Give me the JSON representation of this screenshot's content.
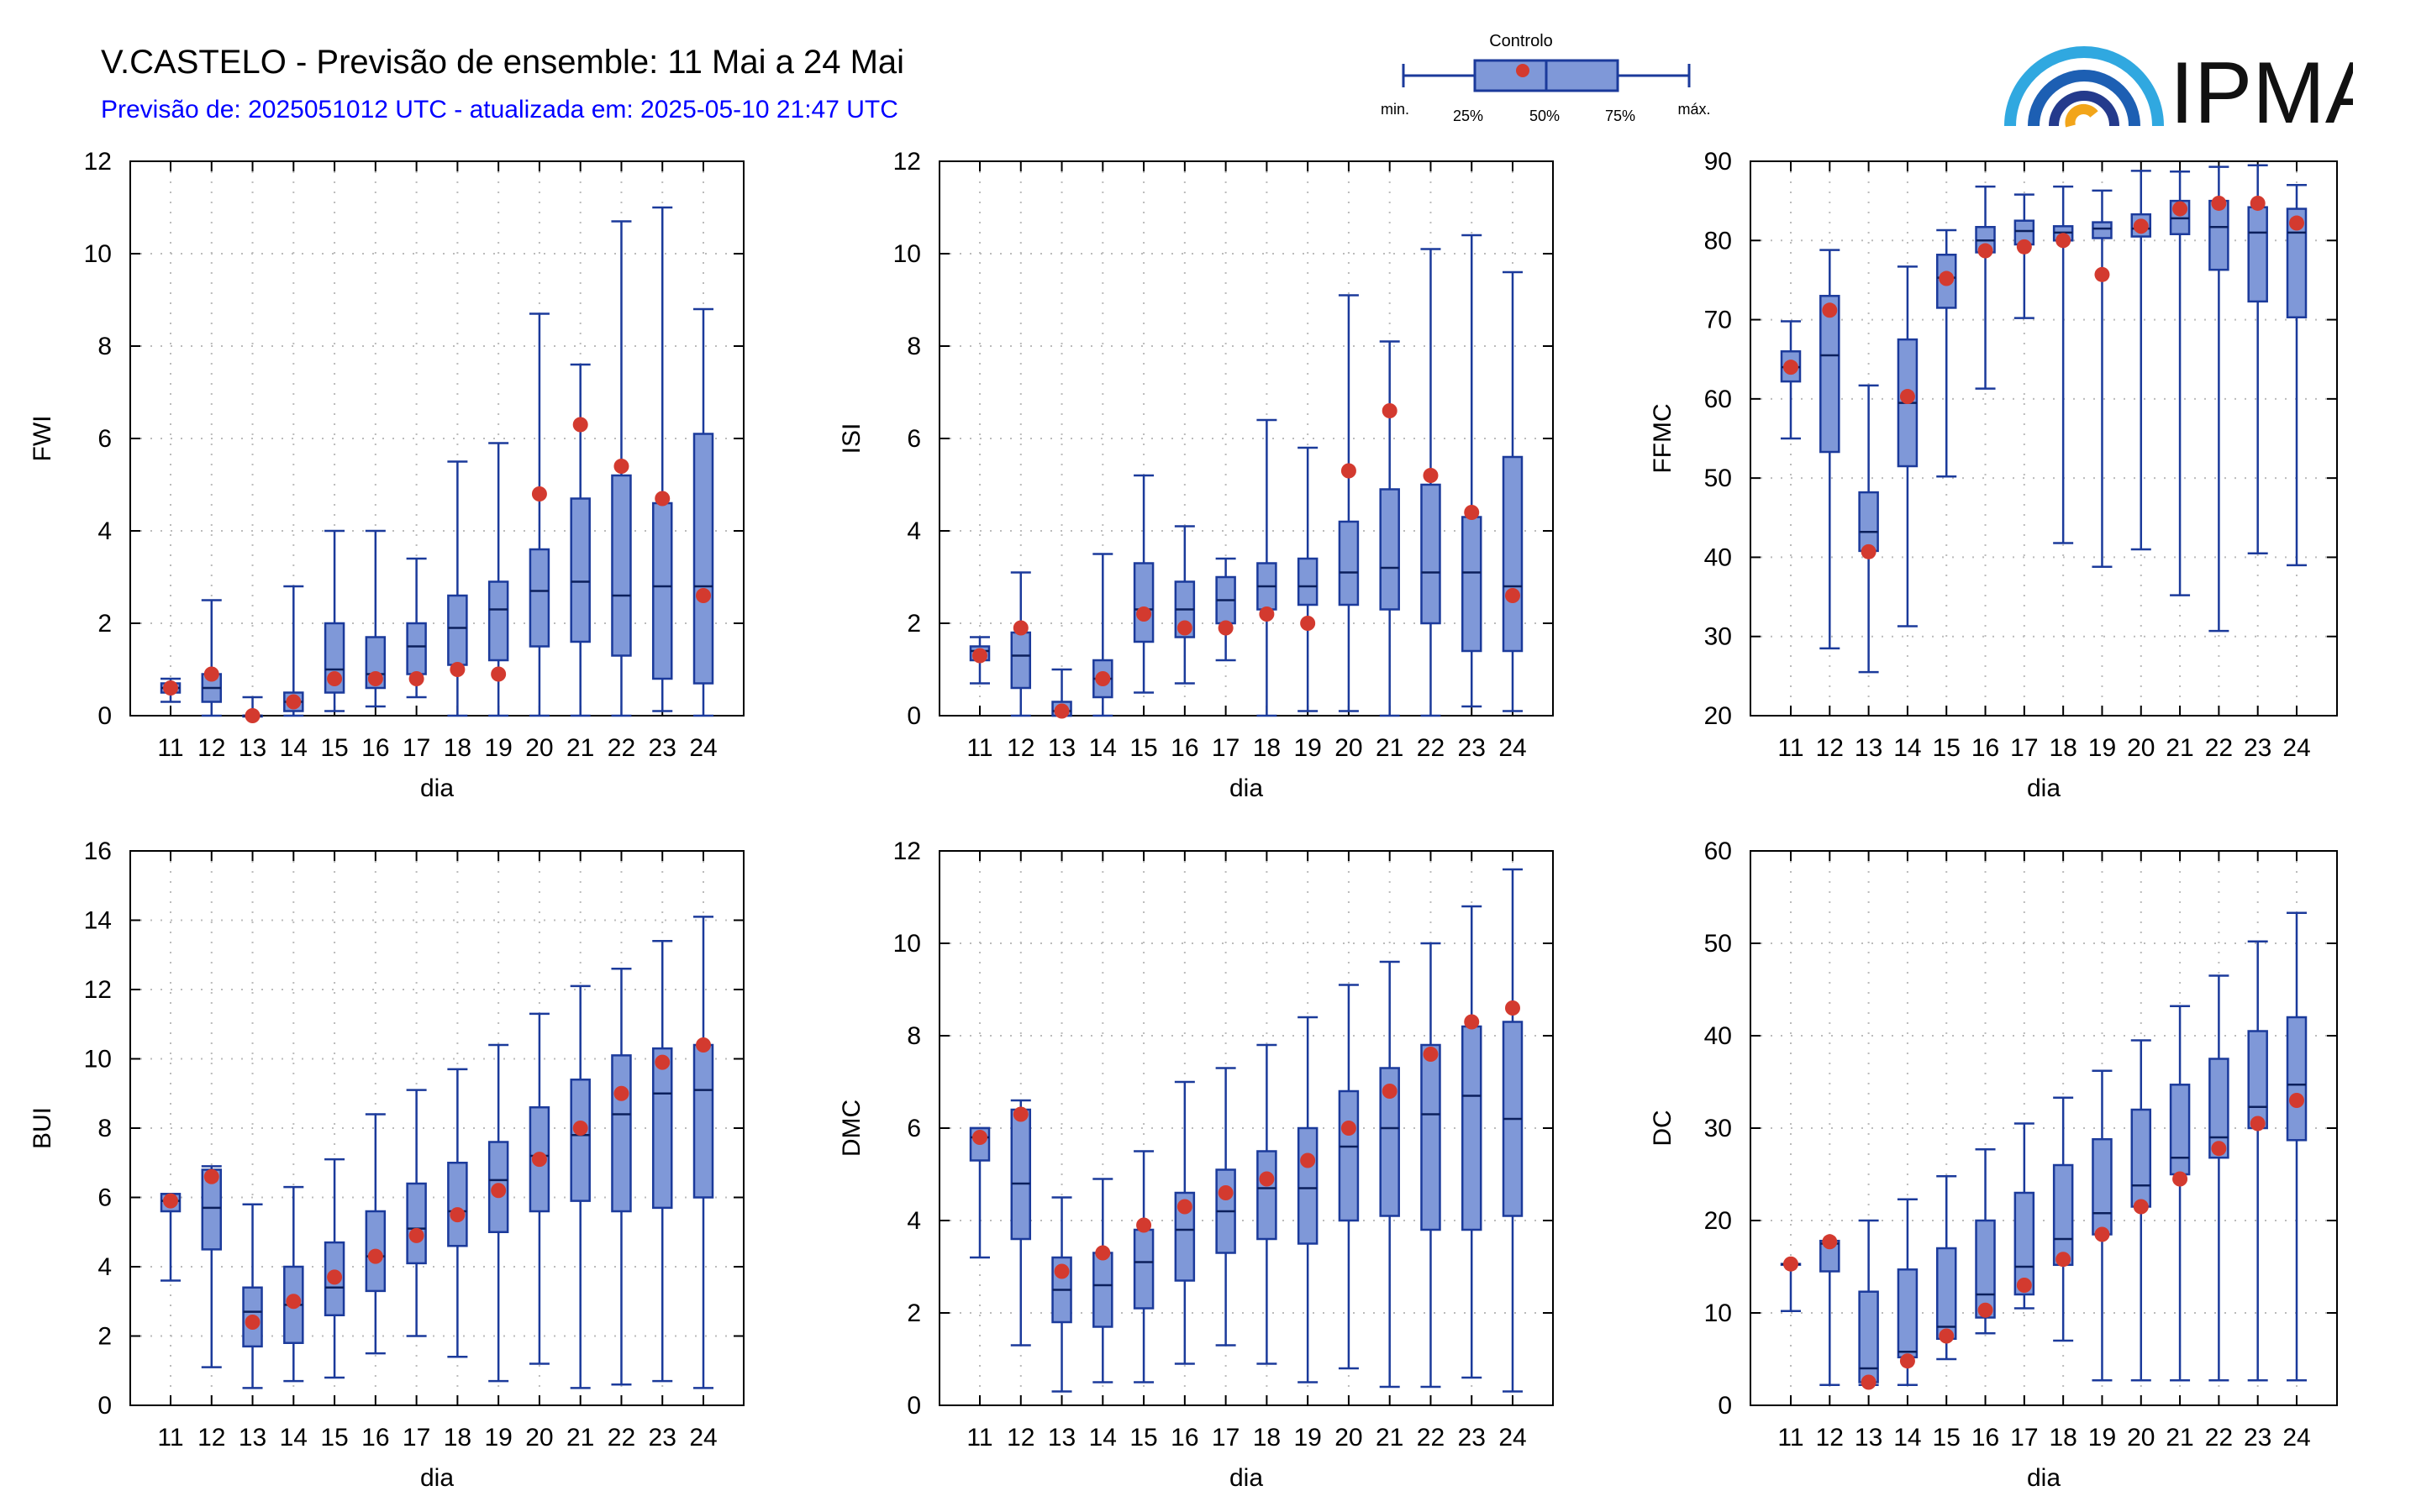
{
  "header": {
    "title": "V.CASTELO - Previsão de ensemble: 11 Mai a 24 Mai",
    "subtitle": "Previsão de: 2025051012 UTC - atualizada em: 2025-05-10 21:47 UTC"
  },
  "legend": {
    "title": "Controlo",
    "labels": [
      "min.",
      "25%",
      "50%",
      "75%",
      "máx."
    ]
  },
  "logo": {
    "text": "IPMA"
  },
  "colors": {
    "box": "#7f98d8",
    "line": "#1b3a9b",
    "control": "#d33a2f",
    "grid": "#bbbbbb"
  },
  "chart_data": [
    {
      "type": "boxplot",
      "ylabel": "FWI",
      "xlabel": "dia",
      "categories": [
        "11",
        "12",
        "13",
        "14",
        "15",
        "16",
        "17",
        "18",
        "19",
        "20",
        "21",
        "22",
        "23",
        "24"
      ],
      "ylim": [
        0,
        12
      ],
      "yticks": [
        0,
        2,
        4,
        6,
        8,
        10,
        12
      ],
      "min": [
        0.3,
        0.0,
        0.0,
        0.0,
        0.1,
        0.2,
        0.4,
        0.0,
        0.0,
        0.0,
        0.0,
        0.0,
        0.1,
        0.0
      ],
      "q1": [
        0.5,
        0.3,
        0.0,
        0.1,
        0.5,
        0.6,
        0.9,
        1.1,
        1.2,
        1.5,
        1.6,
        1.3,
        0.8,
        0.7
      ],
      "median": [
        0.6,
        0.6,
        0.0,
        0.3,
        1.0,
        0.9,
        1.5,
        1.9,
        2.3,
        2.7,
        2.9,
        2.6,
        2.8,
        2.8
      ],
      "q3": [
        0.7,
        0.9,
        0.0,
        0.5,
        2.0,
        1.7,
        2.0,
        2.6,
        2.9,
        3.6,
        4.7,
        5.2,
        4.6,
        6.1
      ],
      "max": [
        0.8,
        2.5,
        0.4,
        2.8,
        4.0,
        4.0,
        3.4,
        5.5,
        5.9,
        8.7,
        7.6,
        10.7,
        11.0,
        8.8
      ],
      "control": [
        0.6,
        0.9,
        0.0,
        0.3,
        0.8,
        0.8,
        0.8,
        1.0,
        0.9,
        4.8,
        6.3,
        5.4,
        4.7,
        2.6
      ]
    },
    {
      "type": "boxplot",
      "ylabel": "ISI",
      "xlabel": "dia",
      "categories": [
        "11",
        "12",
        "13",
        "14",
        "15",
        "16",
        "17",
        "18",
        "19",
        "20",
        "21",
        "22",
        "23",
        "24"
      ],
      "ylim": [
        0,
        12
      ],
      "yticks": [
        0,
        2,
        4,
        6,
        8,
        10,
        12
      ],
      "min": [
        0.7,
        0.0,
        0.0,
        0.0,
        0.5,
        0.7,
        1.2,
        0.0,
        0.1,
        0.1,
        0.0,
        0.0,
        0.2,
        0.1
      ],
      "q1": [
        1.2,
        0.6,
        0.0,
        0.4,
        1.6,
        1.7,
        2.0,
        2.3,
        2.4,
        2.4,
        2.3,
        2.0,
        1.4,
        1.4
      ],
      "median": [
        1.4,
        1.3,
        0.1,
        0.8,
        2.3,
        2.3,
        2.5,
        2.8,
        2.8,
        3.1,
        3.2,
        3.1,
        3.1,
        2.8
      ],
      "q3": [
        1.5,
        1.8,
        0.3,
        1.2,
        3.3,
        2.9,
        3.0,
        3.3,
        3.4,
        4.2,
        4.9,
        5.0,
        4.3,
        5.6
      ],
      "max": [
        1.7,
        3.1,
        1.0,
        3.5,
        5.2,
        4.1,
        3.4,
        6.4,
        5.8,
        9.1,
        8.1,
        10.1,
        10.4,
        9.6
      ],
      "control": [
        1.3,
        1.9,
        0.1,
        0.8,
        2.2,
        1.9,
        1.9,
        2.2,
        2.0,
        5.3,
        6.6,
        5.2,
        4.4,
        2.6
      ]
    },
    {
      "type": "boxplot",
      "ylabel": "FFMC",
      "xlabel": "dia",
      "categories": [
        "11",
        "12",
        "13",
        "14",
        "15",
        "16",
        "17",
        "18",
        "19",
        "20",
        "21",
        "22",
        "23",
        "24"
      ],
      "ylim": [
        20,
        90
      ],
      "yticks": [
        20,
        30,
        40,
        50,
        60,
        70,
        80,
        90
      ],
      "min": [
        55.0,
        28.5,
        25.5,
        31.3,
        50.2,
        61.3,
        70.2,
        41.8,
        38.8,
        41.0,
        35.2,
        30.7,
        40.5,
        39.0
      ],
      "q1": [
        62.2,
        53.3,
        40.8,
        51.5,
        71.5,
        78.5,
        79.5,
        80.0,
        80.3,
        80.5,
        80.8,
        76.3,
        72.3,
        70.3
      ],
      "median": [
        64.0,
        65.5,
        43.2,
        59.5,
        75.3,
        80.0,
        81.2,
        81.0,
        81.5,
        81.5,
        82.8,
        81.7,
        81.0,
        81.0
      ],
      "q3": [
        66.0,
        73.0,
        48.2,
        67.5,
        78.2,
        81.7,
        82.5,
        81.8,
        82.3,
        83.3,
        85.0,
        85.0,
        84.2,
        84.0
      ],
      "max": [
        69.8,
        78.8,
        61.7,
        76.7,
        81.3,
        86.8,
        85.8,
        86.8,
        86.3,
        88.8,
        88.7,
        89.3,
        89.5,
        87.0
      ],
      "control": [
        64.0,
        71.2,
        40.7,
        60.3,
        75.2,
        78.7,
        79.2,
        80.0,
        75.7,
        81.8,
        84.0,
        84.7,
        84.7,
        82.2
      ]
    },
    {
      "type": "boxplot",
      "ylabel": "BUI",
      "xlabel": "dia",
      "categories": [
        "11",
        "12",
        "13",
        "14",
        "15",
        "16",
        "17",
        "18",
        "19",
        "20",
        "21",
        "22",
        "23",
        "24"
      ],
      "ylim": [
        0,
        16
      ],
      "yticks": [
        0,
        2,
        4,
        6,
        8,
        10,
        12,
        14,
        16
      ],
      "min": [
        3.6,
        1.1,
        0.5,
        0.7,
        0.8,
        1.5,
        2.0,
        1.4,
        0.7,
        1.2,
        0.5,
        0.6,
        0.7,
        0.5
      ],
      "q1": [
        5.6,
        4.5,
        1.7,
        1.8,
        2.6,
        3.3,
        4.1,
        4.6,
        5.0,
        5.6,
        5.9,
        5.6,
        5.7,
        6.0
      ],
      "median": [
        5.9,
        5.7,
        2.7,
        2.9,
        3.4,
        4.3,
        5.1,
        5.6,
        6.5,
        7.2,
        7.8,
        8.4,
        9.0,
        9.1
      ],
      "q3": [
        6.1,
        6.8,
        3.4,
        4.0,
        4.7,
        5.6,
        6.4,
        7.0,
        7.6,
        8.6,
        9.4,
        10.1,
        10.3,
        10.4
      ],
      "max": [
        6.1,
        6.9,
        5.8,
        6.3,
        7.1,
        8.4,
        9.1,
        9.7,
        10.4,
        11.3,
        12.1,
        12.6,
        13.4,
        14.1
      ],
      "control": [
        5.9,
        6.6,
        2.4,
        3.0,
        3.7,
        4.3,
        4.9,
        5.5,
        6.2,
        7.1,
        8.0,
        9.0,
        9.9,
        10.4
      ]
    },
    {
      "type": "boxplot",
      "ylabel": "DMC",
      "xlabel": "dia",
      "categories": [
        "11",
        "12",
        "13",
        "14",
        "15",
        "16",
        "17",
        "18",
        "19",
        "20",
        "21",
        "22",
        "23",
        "24"
      ],
      "ylim": [
        0,
        12
      ],
      "yticks": [
        0,
        2,
        4,
        6,
        8,
        10,
        12
      ],
      "min": [
        3.2,
        1.3,
        0.3,
        0.5,
        0.5,
        0.9,
        1.3,
        0.9,
        0.5,
        0.8,
        0.4,
        0.4,
        0.6,
        0.3
      ],
      "q1": [
        5.3,
        3.6,
        1.8,
        1.7,
        2.1,
        2.7,
        3.3,
        3.6,
        3.5,
        4.0,
        4.1,
        3.8,
        3.8,
        4.1
      ],
      "median": [
        5.8,
        4.8,
        2.5,
        2.6,
        3.1,
        3.8,
        4.2,
        4.7,
        4.7,
        5.6,
        6.0,
        6.3,
        6.7,
        6.2
      ],
      "q3": [
        6.0,
        6.4,
        3.2,
        3.3,
        3.8,
        4.6,
        5.1,
        5.5,
        6.0,
        6.8,
        7.3,
        7.8,
        8.2,
        8.3
      ],
      "max": [
        6.0,
        6.6,
        4.5,
        4.9,
        5.5,
        7.0,
        7.3,
        7.8,
        8.4,
        9.1,
        9.6,
        10.0,
        10.8,
        11.6
      ],
      "control": [
        5.8,
        6.3,
        2.9,
        3.3,
        3.9,
        4.3,
        4.6,
        4.9,
        5.3,
        6.0,
        6.8,
        7.6,
        8.3,
        8.6
      ]
    },
    {
      "type": "boxplot",
      "ylabel": "DC",
      "xlabel": "dia",
      "categories": [
        "11",
        "12",
        "13",
        "14",
        "15",
        "16",
        "17",
        "18",
        "19",
        "20",
        "21",
        "22",
        "23",
        "24"
      ],
      "ylim": [
        0,
        60
      ],
      "yticks": [
        0,
        10,
        20,
        30,
        40,
        50,
        60
      ],
      "min": [
        10.2,
        2.2,
        2.2,
        2.2,
        5.0,
        7.8,
        10.5,
        7.0,
        2.7,
        2.7,
        2.7,
        2.7,
        2.7,
        2.7
      ],
      "q1": [
        15.3,
        14.5,
        2.5,
        5.2,
        7.2,
        9.5,
        12.0,
        15.2,
        18.5,
        21.5,
        25.0,
        26.8,
        30.0,
        28.7
      ],
      "median": [
        15.3,
        17.5,
        4.0,
        5.8,
        8.5,
        12.0,
        15.0,
        18.0,
        20.8,
        23.8,
        26.8,
        29.0,
        32.3,
        34.7
      ],
      "q3": [
        15.3,
        17.8,
        12.3,
        14.7,
        17.0,
        20.0,
        23.0,
        26.0,
        28.8,
        32.0,
        34.7,
        37.5,
        40.5,
        42.0
      ],
      "max": [
        15.3,
        17.8,
        20.0,
        22.3,
        24.8,
        27.7,
        30.5,
        33.3,
        36.2,
        39.5,
        43.2,
        46.5,
        50.2,
        53.3
      ],
      "control": [
        15.3,
        17.7,
        2.5,
        4.8,
        7.5,
        10.3,
        13.0,
        15.8,
        18.5,
        21.5,
        24.5,
        27.8,
        30.5,
        33.0
      ]
    }
  ]
}
